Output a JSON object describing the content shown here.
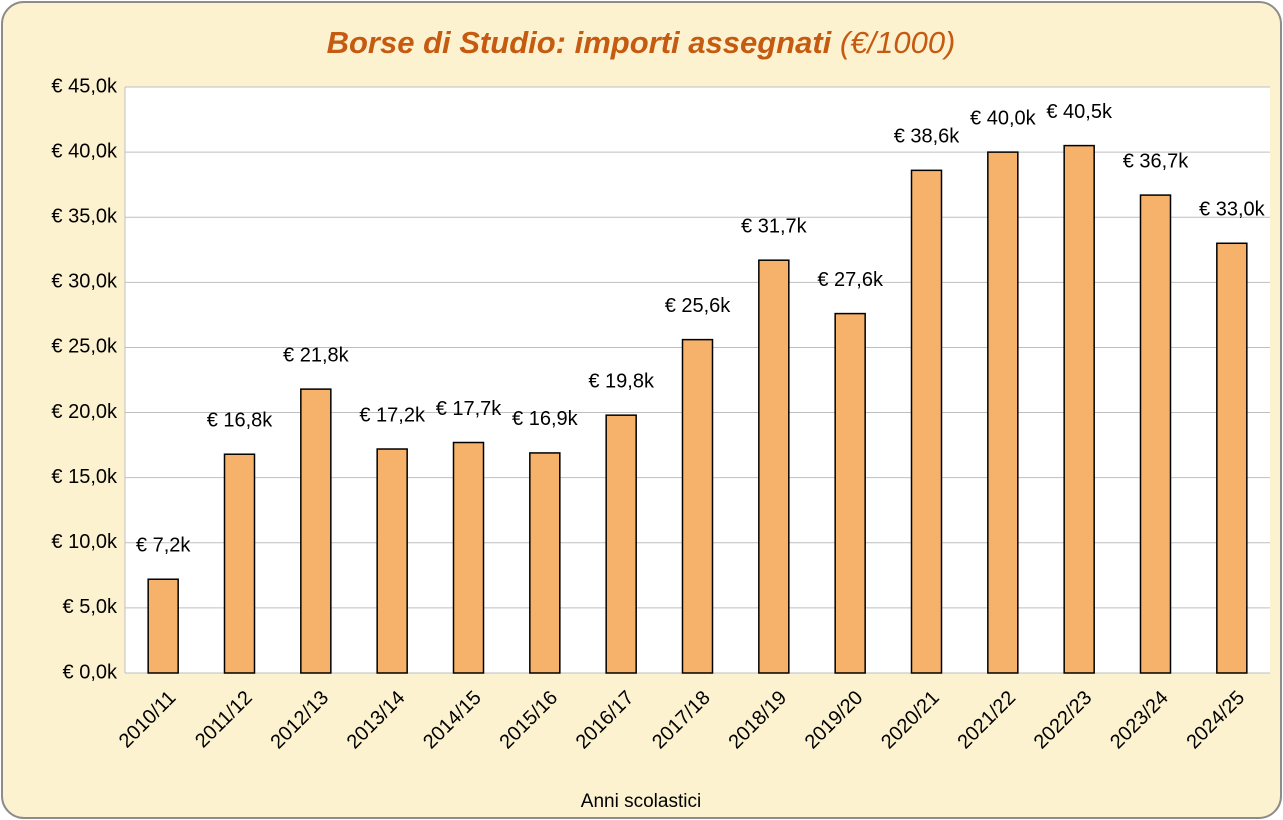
{
  "chart_data": {
    "type": "bar",
    "title": "Borse di Studio: importi assegnati",
    "title_suffix": "(€/1000)",
    "x_label": "Anni scolastici",
    "categories": [
      "2010/11",
      "2011/12",
      "2012/13",
      "2013/14",
      "2014/15",
      "2015/16",
      "2016/17",
      "2017/18",
      "2018/19",
      "2019/20",
      "2020/21",
      "2021/22",
      "2022/23",
      "2023/24",
      "2024/25"
    ],
    "values": [
      7.2,
      16.8,
      21.8,
      17.2,
      17.7,
      16.9,
      19.8,
      25.6,
      31.7,
      27.6,
      38.6,
      40.0,
      40.5,
      36.7,
      33.0
    ],
    "value_labels": [
      "€ 7,2k",
      "€ 16,8k",
      "€ 21,8k",
      "€ 17,2k",
      "€ 17,7k",
      "€ 16,9k",
      "€ 19,8k",
      "€ 25,6k",
      "€ 31,7k",
      "€ 27,6k",
      "€ 38,6k",
      "€ 40,0k",
      "€ 40,5k",
      "€ 36,7k",
      "€ 33,0k"
    ],
    "color": "#f6b26b",
    "ylim": [
      0,
      45
    ],
    "yticks": [
      {
        "value": 0,
        "label": "€ 0,0k"
      },
      {
        "value": 5,
        "label": "€ 5,0k"
      },
      {
        "value": 10,
        "label": "€ 10,0k"
      },
      {
        "value": 15,
        "label": "€ 15,0k"
      },
      {
        "value": 20,
        "label": "€ 20,0k"
      },
      {
        "value": 25,
        "label": "€ 25,0k"
      },
      {
        "value": 30,
        "label": "€ 30,0k"
      },
      {
        "value": 35,
        "label": "€ 35,0k"
      },
      {
        "value": 40,
        "label": "€ 40,0k"
      },
      {
        "value": 45,
        "label": "€ 45,0k"
      }
    ],
    "grid": true
  }
}
